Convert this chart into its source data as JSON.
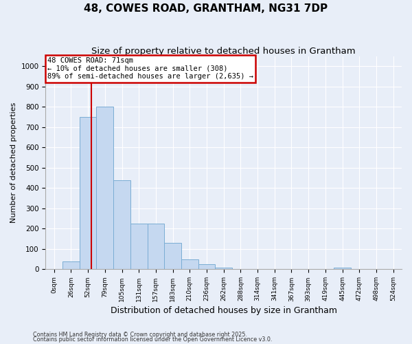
{
  "title": "48, COWES ROAD, GRANTHAM, NG31 7DP",
  "subtitle": "Size of property relative to detached houses in Grantham",
  "xlabel": "Distribution of detached houses by size in Grantham",
  "ylabel": "Number of detached properties",
  "footnote1": "Contains HM Land Registry data © Crown copyright and database right 2025.",
  "footnote2": "Contains public sector information licensed under the Open Government Licence v3.0.",
  "bar_labels": [
    "0sqm",
    "26sqm",
    "52sqm",
    "79sqm",
    "105sqm",
    "131sqm",
    "157sqm",
    "183sqm",
    "210sqm",
    "236sqm",
    "262sqm",
    "288sqm",
    "314sqm",
    "341sqm",
    "367sqm",
    "393sqm",
    "419sqm",
    "445sqm",
    "472sqm",
    "498sqm",
    "524sqm"
  ],
  "bar_values": [
    0,
    40,
    750,
    800,
    440,
    225,
    225,
    130,
    50,
    25,
    8,
    3,
    0,
    0,
    0,
    0,
    0,
    7,
    0,
    0,
    0
  ],
  "bar_color": "#c5d8f0",
  "bar_edge_color": "#7aadd4",
  "property_line_color": "#cc0000",
  "annotation_text1": "48 COWES ROAD: 71sqm",
  "annotation_text2": "← 10% of detached houses are smaller (308)",
  "annotation_text3": "89% of semi-detached houses are larger (2,635) →",
  "annotation_border_color": "#cc0000",
  "ylim": [
    0,
    1050
  ],
  "yticks": [
    0,
    100,
    200,
    300,
    400,
    500,
    600,
    700,
    800,
    900,
    1000
  ],
  "background_color": "#e8eef8",
  "grid_color": "#ffffff",
  "bin_edges": [
    0,
    26,
    52,
    79,
    105,
    131,
    157,
    183,
    210,
    236,
    262,
    288,
    314,
    341,
    367,
    393,
    419,
    445,
    472,
    498,
    524
  ],
  "property_sqm": 71,
  "title_fontsize": 11,
  "subtitle_fontsize": 9.5,
  "ylabel_fontsize": 8,
  "xlabel_fontsize": 9
}
